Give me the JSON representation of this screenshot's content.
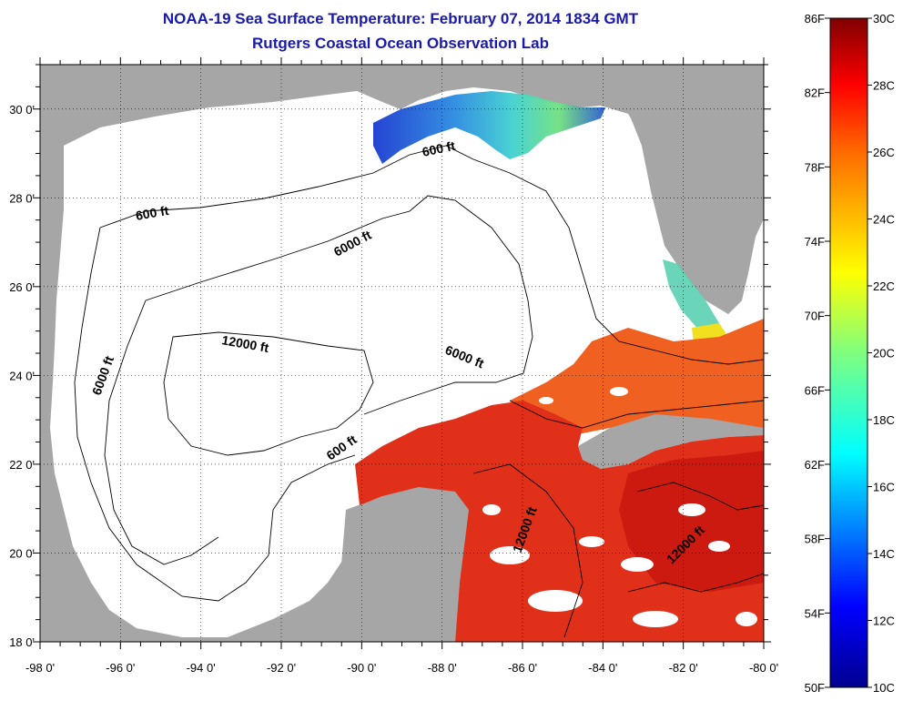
{
  "title": {
    "line1": "NOAA-19 Sea Surface Temperature:  February 07, 2014 1834 GMT",
    "line2": "Rutgers Coastal Ocean Observation Lab"
  },
  "colors": {
    "land": "#a6a6a6",
    "ocean_nodata": "#ffffff",
    "title": "#1a1aa8",
    "warm": "#e8361e",
    "hot": "#cf1a10",
    "orange": "#f06a20",
    "cool_green": "#6ad8a0",
    "cold_blue": "#2a5ad8"
  },
  "map": {
    "lon_labels": [
      "-98 0'",
      "-96 0'",
      "-94 0'",
      "-92 0'",
      "-90 0'",
      "-88 0'",
      "-86 0'",
      "-84 0'",
      "-82 0'",
      "-80 0'"
    ],
    "lat_labels": [
      "30 0'",
      "28 0'",
      "26 0'",
      "24 0'",
      "22 0'",
      "20 0'",
      "18 0'"
    ],
    "lon_range": [
      -98,
      -80
    ],
    "lat_range": [
      18,
      31
    ],
    "contour_labels": [
      "600 ft",
      "600 ft",
      "6000 ft",
      "6000 ft",
      "12000 ft",
      "6000 ft",
      "600 ft",
      "12000 ft",
      "12000 ft"
    ]
  },
  "colorbar": {
    "f_labels": [
      "86F",
      "82F",
      "78F",
      "74F",
      "70F",
      "66F",
      "62F",
      "58F",
      "54F",
      "50F"
    ],
    "c_labels": [
      "30C",
      "28C",
      "26C",
      "24C",
      "22C",
      "20C",
      "18C",
      "16C",
      "14C",
      "12C",
      "10C"
    ],
    "range_c": [
      10,
      30
    ],
    "range_f": [
      50,
      86
    ],
    "colormap": "jet"
  }
}
